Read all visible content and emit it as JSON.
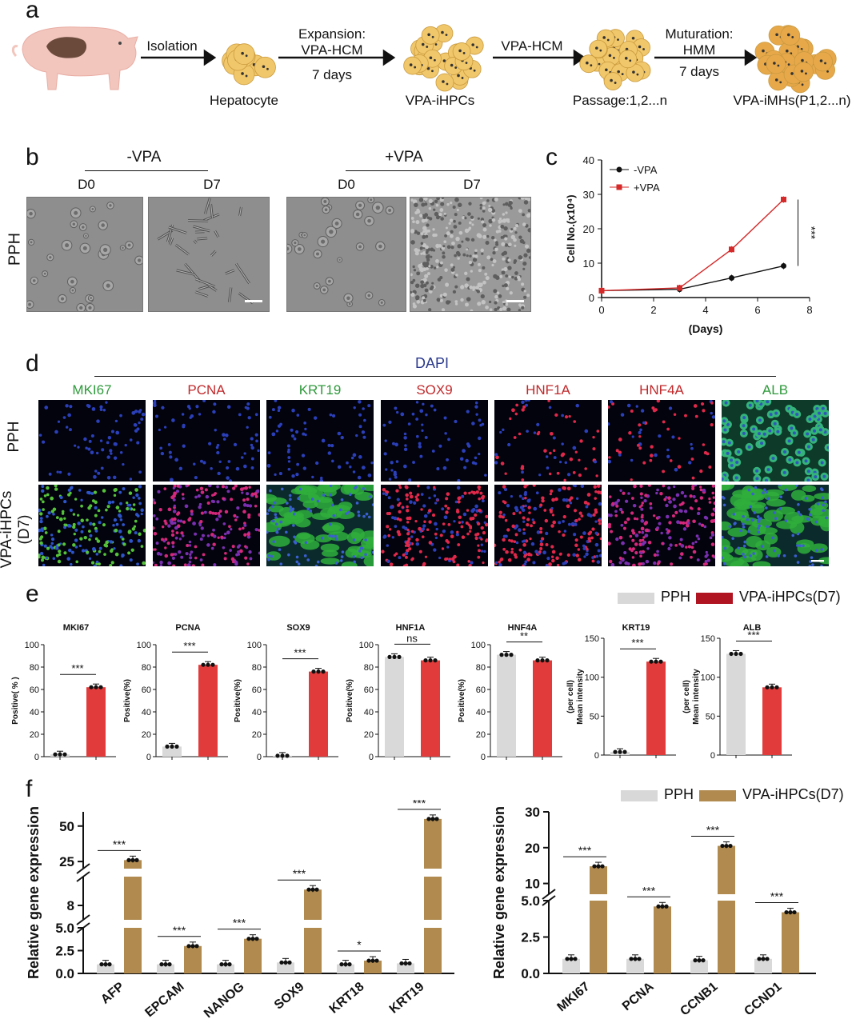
{
  "panels": {
    "a": "a",
    "b": "b",
    "c": "c",
    "d": "d",
    "e": "e",
    "f": "f"
  },
  "workflow": {
    "steps": [
      {
        "arrow_top": "Isolation",
        "arrow_bottom": ""
      },
      {
        "arrow_top": "Expansion:\nVPA-HCM",
        "arrow_bottom": "7 days"
      },
      {
        "arrow_top": "VPA-HCM",
        "arrow_bottom": ""
      },
      {
        "arrow_top": "Muturation:\nHMM",
        "arrow_bottom": "7 days"
      }
    ],
    "stages": [
      "Hepatocyte",
      "VPA-iHPCs",
      "Passage:1,2...n",
      "VPA-iMHs(P1,2...n)"
    ]
  },
  "panel_b": {
    "row_label": "PPH",
    "groups": [
      {
        "name": "-VPA",
        "days": [
          "D0",
          "D7"
        ]
      },
      {
        "name": "+VPA",
        "days": [
          "D0",
          "D7"
        ]
      }
    ]
  },
  "panel_c_chart": {
    "type": "line",
    "x": [
      0,
      3,
      5,
      7
    ],
    "series": [
      {
        "name": "-VPA",
        "values": [
          2,
          2.4,
          5.7,
          9.2
        ],
        "color": "#111111"
      },
      {
        "name": "+VPA",
        "values": [
          2,
          2.8,
          14,
          28.5
        ],
        "color": "#d42a2a"
      }
    ],
    "xlabel": "(Days)",
    "ylabel": "Cell No.(x10⁴)",
    "xlim": [
      0,
      8
    ],
    "ylim": [
      0,
      40
    ],
    "xticks": [
      "0",
      "2",
      "4",
      "6",
      "8"
    ],
    "yticks": [
      "0",
      "10",
      "20",
      "30",
      "40"
    ],
    "significance": "***",
    "legend": "top-left"
  },
  "panel_d": {
    "top_label": "DAPI",
    "markers": [
      {
        "name": "MKI67",
        "color": "#2e9a3b"
      },
      {
        "name": "PCNA",
        "color": "#c0282a"
      },
      {
        "name": "KRT19",
        "color": "#2e9a3b"
      },
      {
        "name": "SOX9",
        "color": "#c0282a"
      },
      {
        "name": "HNF1A",
        "color": "#c0282a"
      },
      {
        "name": "HNF4A",
        "color": "#c0282a"
      },
      {
        "name": "ALB",
        "color": "#2e9a3b"
      }
    ],
    "rows": [
      "PPH",
      "VPA-iHPCs\n(D7)"
    ]
  },
  "panel_e": {
    "legend": [
      {
        "name": "PPH",
        "color": "#d8d8d8"
      },
      {
        "name": "VPA-iHPCs(D7)",
        "color": "#b01421"
      }
    ],
    "chart_data": [
      {
        "type": "bar",
        "title": "MKI67",
        "ylabel": "Positive( % )",
        "ylim": [
          0,
          100
        ],
        "yticks": [
          "0",
          "20",
          "40",
          "60",
          "80",
          "100"
        ],
        "values": [
          2,
          62
        ],
        "sig": "***"
      },
      {
        "type": "bar",
        "title": "PCNA",
        "ylabel": "Positive(%)",
        "ylim": [
          0,
          100
        ],
        "yticks": [
          "0",
          "20",
          "40",
          "60",
          "80",
          "100"
        ],
        "values": [
          9,
          82
        ],
        "sig": "***"
      },
      {
        "type": "bar",
        "title": "SOX9",
        "ylabel": "Positive(%)",
        "ylim": [
          0,
          100
        ],
        "yticks": [
          "0",
          "20",
          "40",
          "60",
          "80",
          "100"
        ],
        "values": [
          0.8,
          76
        ],
        "sig": "***"
      },
      {
        "type": "bar",
        "title": "HNF1A",
        "ylabel": "Positive(%)",
        "ylim": [
          0,
          100
        ],
        "yticks": [
          "0",
          "20",
          "40",
          "60",
          "80",
          "100"
        ],
        "values": [
          89,
          86
        ],
        "sig": "ns"
      },
      {
        "type": "bar",
        "title": "HNF4A",
        "ylabel": "Positive(%)",
        "ylim": [
          0,
          100
        ],
        "yticks": [
          "0",
          "20",
          "40",
          "60",
          "80",
          "100"
        ],
        "values": [
          91,
          86
        ],
        "sig": "**"
      },
      {
        "type": "bar",
        "title": "KRT19",
        "ylabel": "Mean intensity\n(per cell)",
        "ylim": [
          0,
          150
        ],
        "yticks": [
          "0",
          "50",
          "100",
          "150"
        ],
        "values": [
          4,
          120
        ],
        "sig": "***"
      },
      {
        "type": "bar",
        "title": "ALB",
        "ylabel": "Mean intensity\n(per cell)",
        "ylim": [
          0,
          150
        ],
        "yticks": [
          "0",
          "50",
          "100",
          "150"
        ],
        "values": [
          130,
          87
        ],
        "sig": "***"
      }
    ]
  },
  "panel_f": {
    "legend": [
      {
        "name": "PPH",
        "color": "#d8d8d8"
      },
      {
        "name": "VPA-iHPCs(D7)",
        "color": "#b08a4f"
      }
    ],
    "chart_data": [
      {
        "type": "bar",
        "ylabel": "Relative gene expression",
        "categories": [
          "AFP",
          "EPCAM",
          "NANOG",
          "SOX9",
          "KRT18",
          "KRT19"
        ],
        "series": [
          {
            "name": "PPH",
            "values": [
              1,
              1,
              1,
              1.2,
              1,
              1.1
            ]
          },
          {
            "name": "VPA-iHPCs(D7)",
            "values": [
              26,
              3,
              3.8,
              10.2,
              1.4,
              55
            ]
          }
        ],
        "sig": [
          "***",
          "***",
          "***",
          "***",
          "*",
          "***"
        ],
        "yticks": [
          "0.0",
          "2.5",
          "5.0",
          "8",
          "25",
          "50"
        ],
        "broken_axis": true
      },
      {
        "type": "bar",
        "ylabel": "Relative gene expression",
        "categories": [
          "MKI67",
          "PCNA",
          "CCNB1",
          "CCND1"
        ],
        "series": [
          {
            "name": "PPH",
            "values": [
              1,
              1,
              0.9,
              1
            ]
          },
          {
            "name": "VPA-iHPCs(D7)",
            "values": [
              14.8,
              4.6,
              20.5,
              4.2
            ]
          }
        ],
        "sig": [
          "***",
          "***",
          "***",
          "***"
        ],
        "yticks": [
          "0.0",
          "2.5",
          "5.0",
          "10",
          "20",
          "30"
        ],
        "broken_axis": true
      }
    ]
  }
}
